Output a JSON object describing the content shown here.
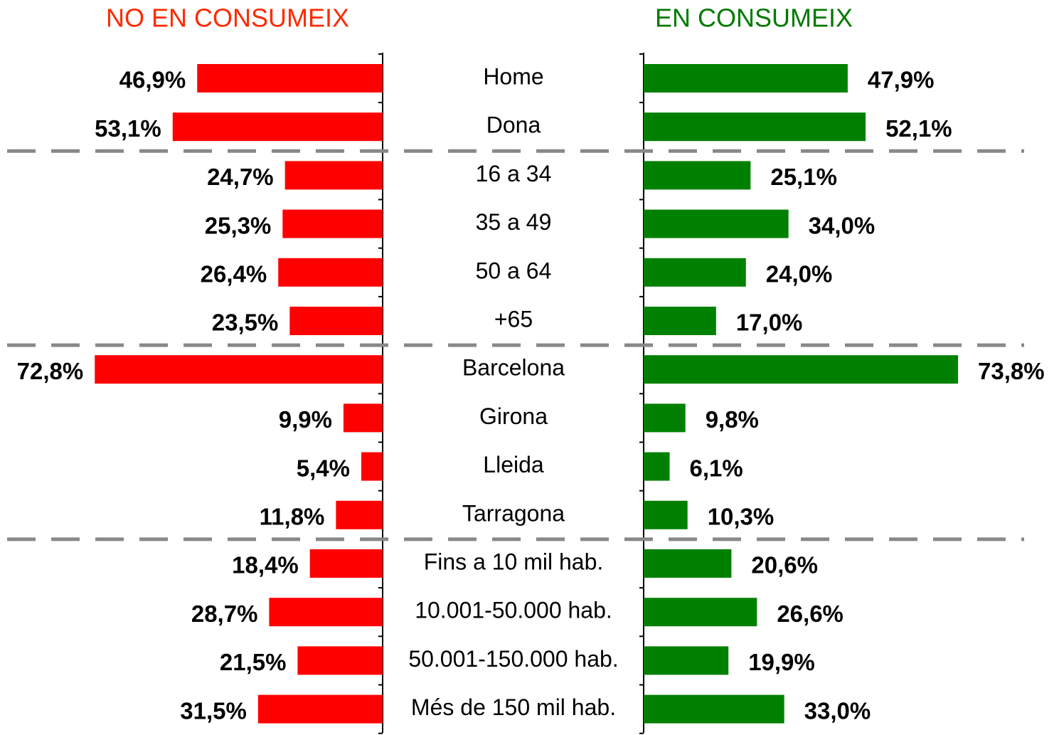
{
  "chart_data": {
    "type": "butterfly",
    "categories": [
      "Home",
      "Dona",
      "16 a 34",
      "35 a 49",
      "50 a 64",
      "+65",
      "Barcelona",
      "Girona",
      "Lleida",
      "Tarragona",
      "Fins a 10 mil hab.",
      "10.001-50.000 hab.",
      "50.001-150.000 hab.",
      "Més de 150 mil hab."
    ],
    "series": [
      {
        "name": "NO EN CONSUMEIX",
        "color": "#ff0000",
        "values": [
          46.9,
          53.1,
          24.7,
          25.3,
          26.4,
          23.5,
          72.8,
          9.9,
          5.4,
          11.8,
          18.4,
          28.7,
          21.5,
          31.5
        ],
        "value_labels": [
          "46,9%",
          "53,1%",
          "24,7%",
          "25,3%",
          "26,4%",
          "23,5%",
          "72,8%",
          "9,9%",
          "5,4%",
          "11,8%",
          "18,4%",
          "28,7%",
          "21,5%",
          "31,5%"
        ]
      },
      {
        "name": "EN CONSUMEIX",
        "color": "#008000",
        "values": [
          47.9,
          52.1,
          25.1,
          34.0,
          24.0,
          17.0,
          73.8,
          9.8,
          6.1,
          10.3,
          20.6,
          26.6,
          19.9,
          33.0
        ],
        "value_labels": [
          "47,9%",
          "52,1%",
          "25,1%",
          "34,0%",
          "24,0%",
          "17,0%",
          "73,8%",
          "9,8%",
          "6,1%",
          "10,3%",
          "20,6%",
          "26,6%",
          "19,9%",
          "33,0%"
        ]
      }
    ]
  }
}
